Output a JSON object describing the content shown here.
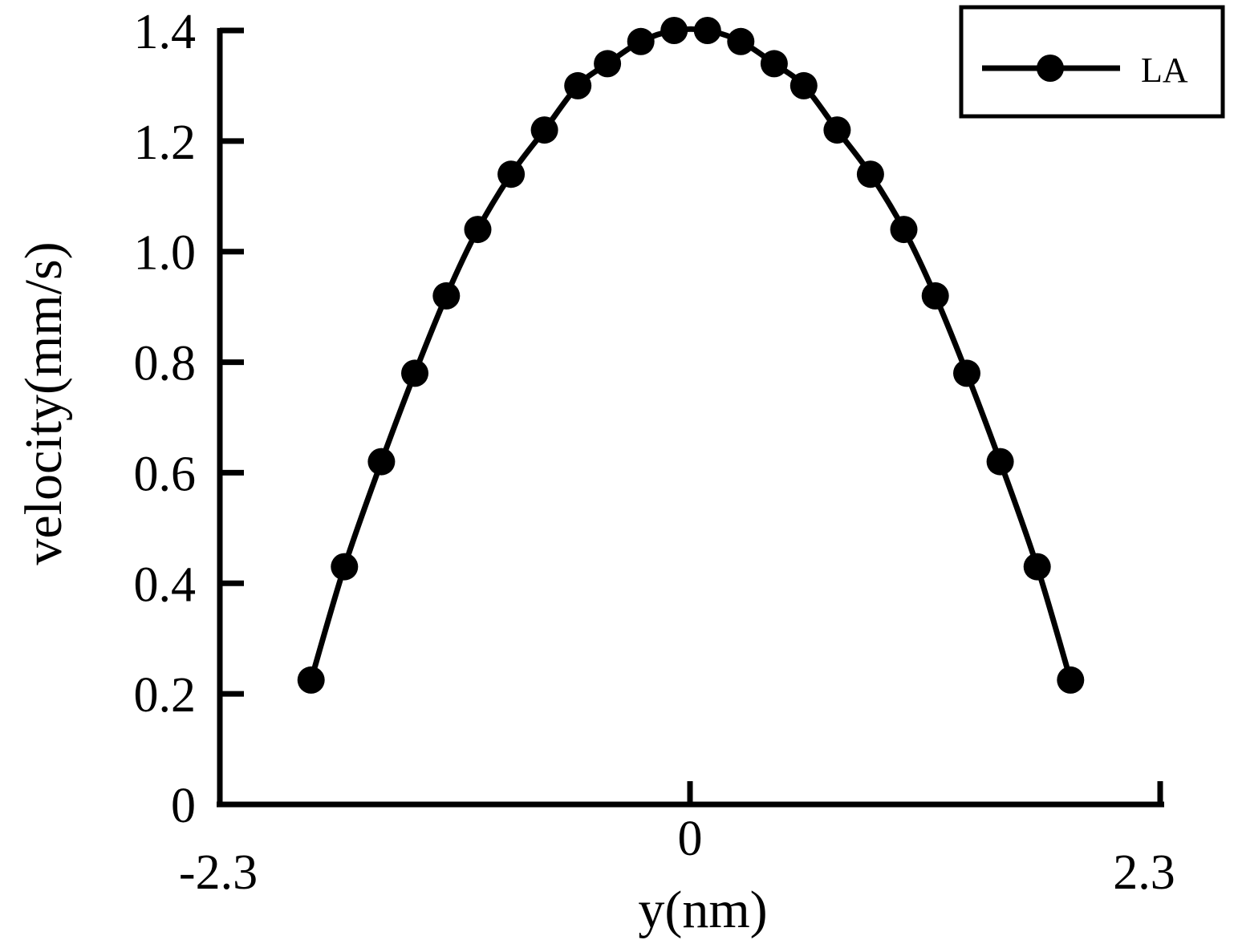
{
  "chart_data": {
    "type": "line",
    "title": "",
    "xlabel": "y(nm)",
    "ylabel": "velocity(mm/s)",
    "xlim": [
      -2.3,
      2.3
    ],
    "ylim": [
      0,
      1.4
    ],
    "x_ticks": [
      {
        "value": -2.3,
        "label": "-2.3"
      },
      {
        "value": 0,
        "label": "0"
      },
      {
        "value": 2.3,
        "label": "2.3"
      }
    ],
    "y_ticks": [
      {
        "value": 0,
        "label": "0"
      },
      {
        "value": 0.2,
        "label": "0.2"
      },
      {
        "value": 0.4,
        "label": "0.4"
      },
      {
        "value": 0.6,
        "label": "0.6"
      },
      {
        "value": 0.8,
        "label": "0.8"
      },
      {
        "value": 1.0,
        "label": "1.0"
      },
      {
        "value": 1.2,
        "label": "1.2"
      },
      {
        "value": 1.4,
        "label": "1.4"
      }
    ],
    "grid": false,
    "legend_position": "top-right",
    "series": [
      {
        "name": "LA",
        "color": "#000000",
        "marker": "circle",
        "x": [
          -2.05,
          -1.87,
          -1.67,
          -1.49,
          -1.32,
          -1.15,
          -0.97,
          -0.79,
          -0.61,
          -0.45,
          -0.27,
          -0.09,
          0.09,
          0.27,
          0.45,
          0.61,
          0.79,
          0.97,
          1.15,
          1.32,
          1.49,
          1.67,
          1.87,
          2.05
        ],
        "y": [
          0.225,
          0.43,
          0.62,
          0.78,
          0.92,
          1.04,
          1.14,
          1.22,
          1.3,
          1.34,
          1.38,
          1.4,
          1.4,
          1.38,
          1.34,
          1.3,
          1.22,
          1.14,
          1.04,
          0.92,
          0.78,
          0.62,
          0.43,
          0.225
        ]
      }
    ]
  }
}
